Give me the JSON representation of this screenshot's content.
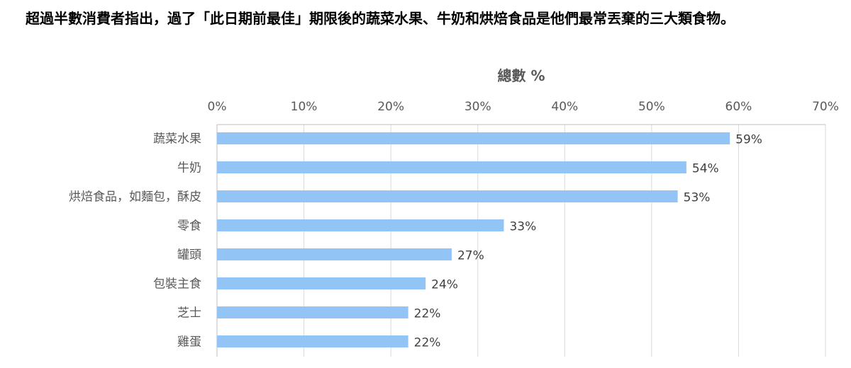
{
  "title": "超過半數消費者指出，過了「此日期前最佳」期限後的蔬菜水果、牛奶和烘焙食品是他們最常丟棄的三大類食物。",
  "chart_data": {
    "type": "bar",
    "orientation": "horizontal",
    "xlabel": "總數 %",
    "xlim": [
      0,
      70
    ],
    "tick_values": [
      0,
      10,
      20,
      30,
      40,
      50,
      60,
      70
    ],
    "tick_labels": [
      "0%",
      "10%",
      "20%",
      "30%",
      "40%",
      "50%",
      "60%",
      "70%"
    ],
    "categories": [
      "蔬菜水果",
      "牛奶",
      "烘焙食品，如麵包，酥皮",
      "零食",
      "罐頭",
      "包裝主食",
      "芝士",
      "雞蛋"
    ],
    "values": [
      59,
      54,
      53,
      33,
      27,
      24,
      22,
      22
    ],
    "data_labels": [
      "59%",
      "54%",
      "53%",
      "33%",
      "27%",
      "24%",
      "22%",
      "22%"
    ],
    "bar_color": "#92C5F6",
    "grid": "vertical",
    "legend": "none"
  }
}
